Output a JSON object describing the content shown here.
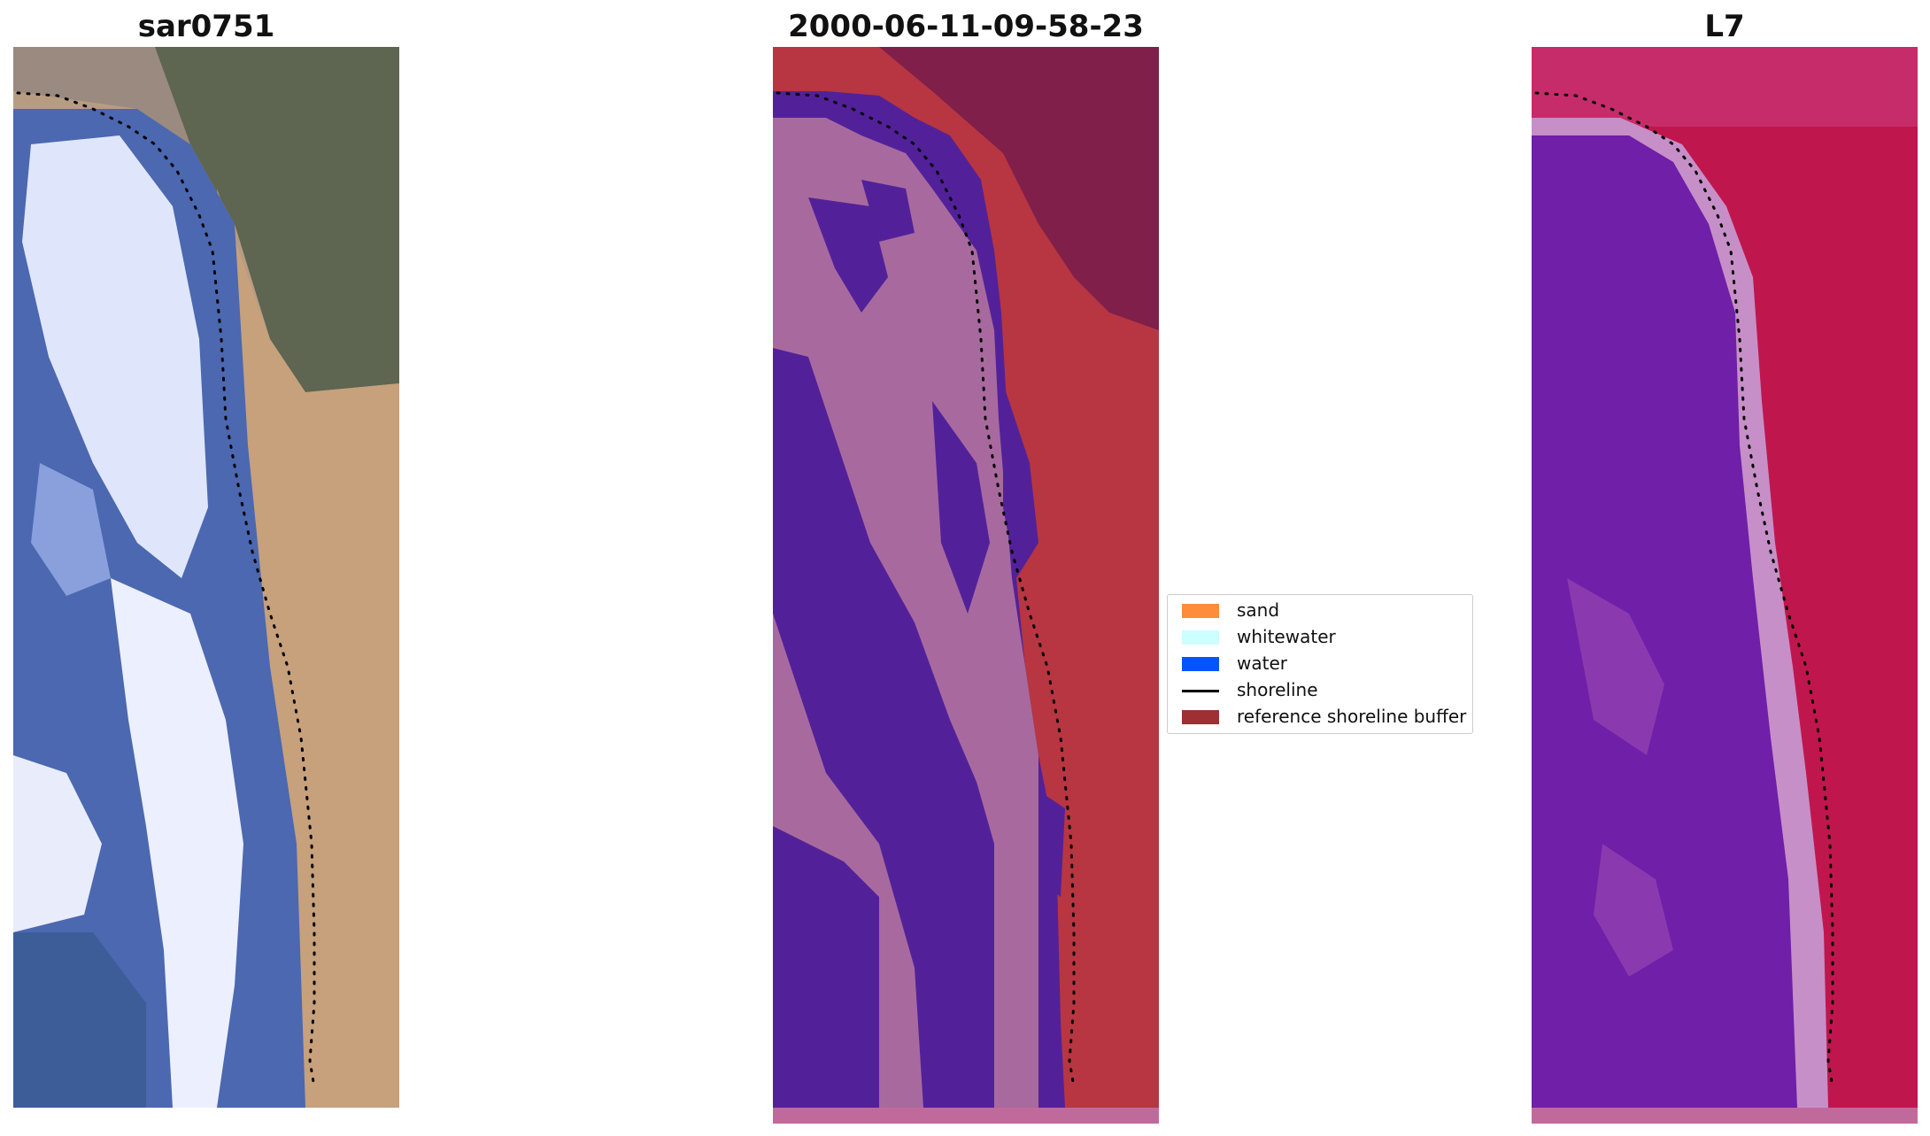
{
  "panels": [
    {
      "id": "rgb",
      "title": "sar0751"
    },
    {
      "id": "classified",
      "title": "2000-06-11-09-58-23"
    },
    {
      "id": "index",
      "title": "L7"
    }
  ],
  "legend": {
    "items": [
      {
        "label": "sand",
        "color": "#ff8c3a",
        "kind": "patch"
      },
      {
        "label": "whitewater",
        "color": "#ccffff",
        "kind": "patch"
      },
      {
        "label": "water",
        "color": "#0055ff",
        "kind": "patch"
      },
      {
        "label": "shoreline",
        "color": "#000000",
        "kind": "line"
      },
      {
        "label": "reference shoreline buffer",
        "color": "#9e2f33",
        "kind": "patch"
      }
    ]
  },
  "colors": {
    "rgb_sand": "#c9a27c",
    "rgb_vegetation": "#6f6b58",
    "rgb_water": "#4a6ab0",
    "rgb_whitewater": "#e6ecff",
    "class_water": "#52219a",
    "class_land": "#a86a9e",
    "class_buffer": "#b73641",
    "class_dark_buffer": "#7f1f4a",
    "index_water": "#6f1fa8",
    "index_land": "#c0164e",
    "index_transition": "#c78fc7"
  }
}
